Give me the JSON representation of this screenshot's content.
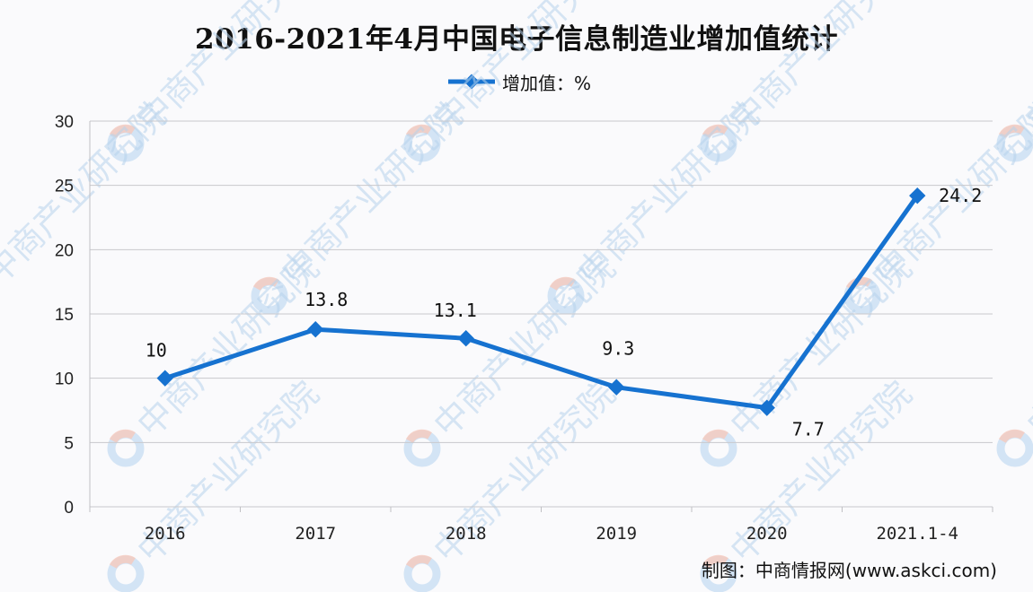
{
  "title": "2016-2021年4月中国电子信息制造业增加值统计",
  "legend": {
    "label": "增加值：%",
    "color": "#1672d0"
  },
  "source": "制图：中商情报网(www.askci.com)",
  "watermark": "中商产业研究院",
  "chart_data": {
    "type": "line",
    "title": "2016-2021年4月中国电子信息制造业增加值统计",
    "xlabel": "",
    "ylabel": "",
    "categories": [
      "2016",
      "2017",
      "2018",
      "2019",
      "2020",
      "2021.1-4"
    ],
    "series": [
      {
        "name": "增加值：%",
        "values": [
          10,
          13.8,
          13.1,
          9.3,
          7.7,
          24.2
        ],
        "color": "#1672d0"
      }
    ],
    "data_labels": [
      "10",
      "13.8",
      "13.1",
      "9.3",
      "7.7",
      "24.2"
    ],
    "ylim": [
      0,
      30
    ],
    "yticks": [
      0,
      5,
      10,
      15,
      20,
      25,
      30
    ],
    "grid": true,
    "legend_position": "top"
  }
}
